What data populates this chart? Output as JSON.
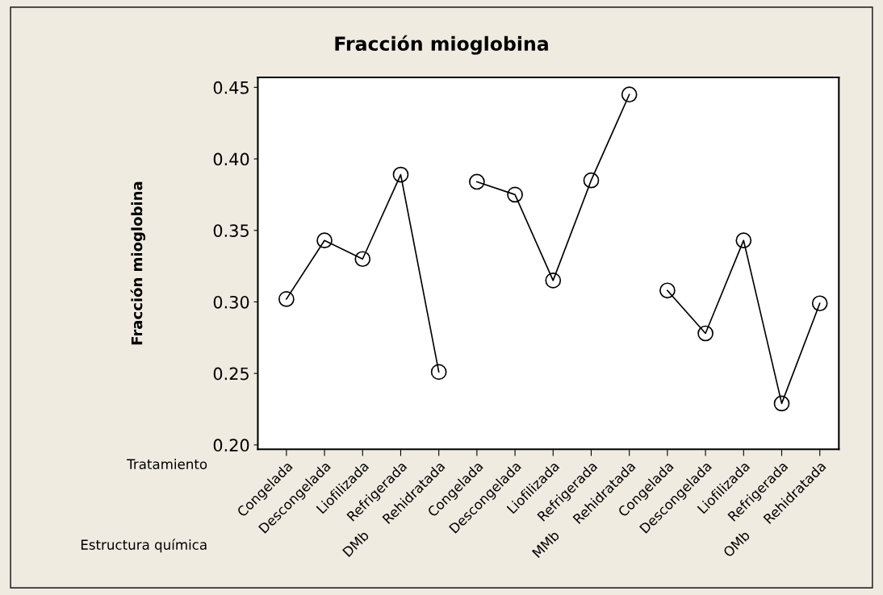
{
  "chart_data": {
    "type": "line",
    "title": "Fracción mioglobina",
    "ylabel": "Fracción mioglobina",
    "categories": [
      "Congelada",
      "Descongelada",
      "Liofilizada",
      "Refrigerada",
      "Rehidratada",
      "Congelada",
      "Descongelada",
      "Liofilizada",
      "Refrigerada",
      "Rehidratada",
      "Congelada",
      "Descongelada",
      "Liofilizada",
      "Refrigerada",
      "Rehidratada"
    ],
    "series": [
      {
        "color": "#000000",
        "values": [
          0.302,
          0.343,
          0.33,
          0.389,
          0.251,
          null,
          null,
          null,
          null,
          null,
          null,
          null,
          null,
          null,
          null
        ]
      },
      {
        "color": "#000000",
        "values": [
          null,
          null,
          null,
          null,
          null,
          0.384,
          0.375,
          0.315,
          0.385,
          0.445,
          null,
          null,
          null,
          null,
          null
        ]
      },
      {
        "color": "#000000",
        "values": [
          null,
          null,
          null,
          null,
          null,
          null,
          null,
          null,
          null,
          null,
          0.308,
          0.278,
          0.343,
          0.229,
          0.299
        ]
      }
    ],
    "annotations": [
      "Tratamiento",
      "Estructura química",
      "DMb",
      "MMb",
      "OMb"
    ],
    "ylim": [
      0.197,
      0.457
    ],
    "yticks": [
      {
        "value": 0.2,
        "label": "0.20"
      },
      {
        "value": 0.25,
        "label": "0.25"
      },
      {
        "value": 0.3,
        "label": "0.30"
      },
      {
        "value": 0.35,
        "label": "0.35"
      },
      {
        "value": 0.4,
        "label": "0.40"
      },
      {
        "value": 0.45,
        "label": "0.45"
      }
    ],
    "grid": false,
    "legend": false,
    "marker": "circle",
    "line_style": "solid"
  }
}
